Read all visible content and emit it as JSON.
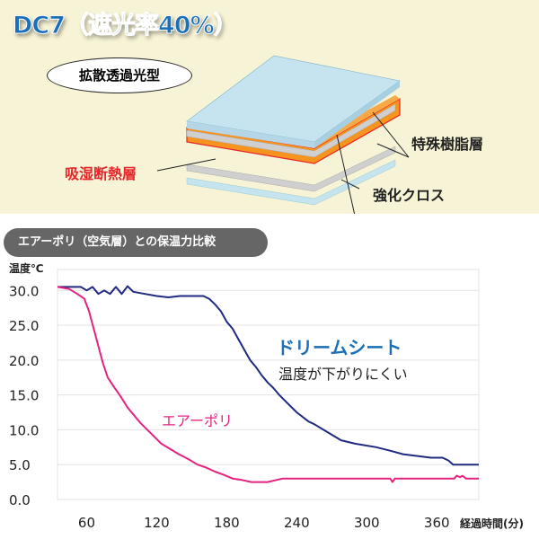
{
  "header": {
    "title": "DC7（遮光率40%）",
    "type_label": "拡散透過光型"
  },
  "diagram": {
    "labels": {
      "resin": "特殊樹脂層",
      "insulation": "吸湿断熱層",
      "cloth": "強化クロス"
    },
    "colors": {
      "outer": "#c6e3f0",
      "gray": "#c9c9c9",
      "orange": "#f7941d",
      "insulation_text": "#e8242b"
    }
  },
  "section_title": "エアーポリ（空気層）との保温力比較",
  "chart_data": {
    "type": "line",
    "ylabel": "温度℃",
    "xlabel": "経過時間(分)",
    "xlim": [
      35,
      396
    ],
    "ylim": [
      0,
      33
    ],
    "xticks": [
      60,
      120,
      180,
      240,
      300,
      360
    ],
    "yticks": [
      "0.0",
      "5.0",
      "10.0",
      "15.0",
      "20.0",
      "25.0",
      "30.0"
    ],
    "grid": "horizontal",
    "series": [
      {
        "name": "ドリームシート",
        "note": "温度が下がりにくい",
        "color": "#1f2a80",
        "x": [
          35,
          55,
          60,
          65,
          70,
          75,
          80,
          85,
          90,
          95,
          100,
          110,
          120,
          130,
          140,
          150,
          160,
          165,
          170,
          175,
          180,
          185,
          190,
          195,
          200,
          205,
          210,
          215,
          220,
          225,
          231,
          240,
          250,
          255,
          265,
          278,
          290,
          308,
          320,
          331,
          345,
          355,
          365,
          370,
          374,
          385,
          396
        ],
        "y": [
          30.5,
          30.5,
          30,
          30.5,
          29.5,
          30,
          29.5,
          30.5,
          29.5,
          30.6,
          29.8,
          29.5,
          29.2,
          29,
          29.2,
          29.2,
          29.2,
          28.8,
          28,
          27,
          25.5,
          24.5,
          23,
          21.5,
          20,
          19,
          17.8,
          16.8,
          16,
          15,
          14,
          12.5,
          11.2,
          10.8,
          9.8,
          8.5,
          8,
          7.5,
          7,
          6.5,
          6.2,
          6,
          6,
          5.6,
          5,
          5,
          5
        ]
      },
      {
        "name": "エアーポリ",
        "color": "#e5237f",
        "x": [
          35,
          45,
          52,
          58,
          62,
          66,
          70,
          74,
          78,
          84,
          89,
          95,
          101,
          106,
          112,
          118,
          124,
          132,
          139,
          147,
          155,
          162,
          170,
          178,
          185,
          193,
          201,
          215,
          228,
          260,
          300,
          320,
          322,
          324,
          360,
          375,
          377,
          380,
          382,
          385,
          396
        ],
        "y": [
          30.5,
          30.2,
          29.5,
          28.8,
          27,
          24.5,
          22,
          19.5,
          17.5,
          16,
          14.8,
          13.2,
          12,
          11,
          10,
          9,
          8,
          7.2,
          6.5,
          5.8,
          5,
          4.6,
          4,
          3.5,
          3,
          2.8,
          2.5,
          2.5,
          3,
          3,
          3,
          3,
          2.5,
          3,
          3,
          3,
          3.4,
          3.2,
          3.4,
          3,
          3
        ]
      }
    ]
  }
}
